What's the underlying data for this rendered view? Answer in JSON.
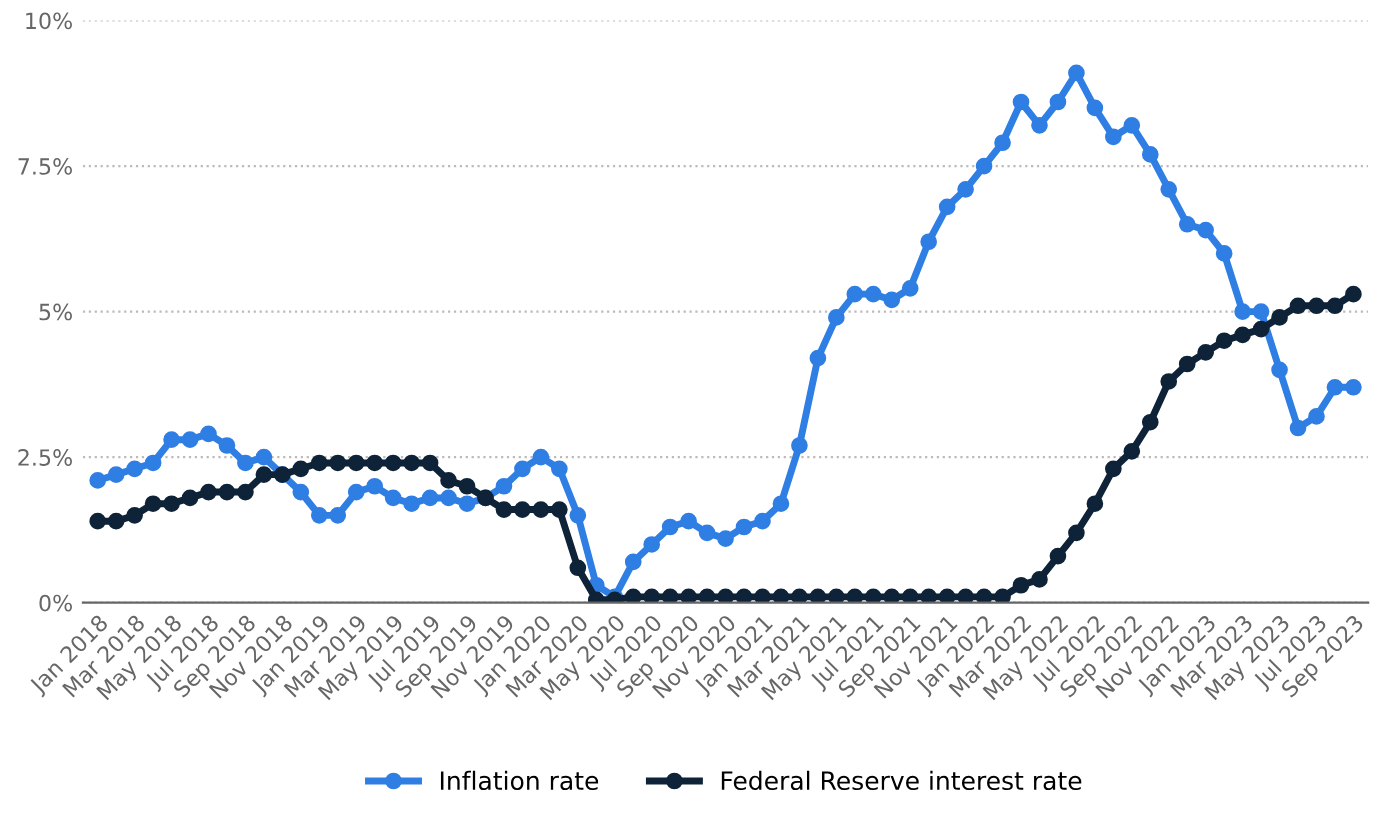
{
  "chart_data": {
    "type": "line",
    "categories": [
      "Jan 2018",
      null,
      "Mar 2018",
      null,
      "May 2018",
      null,
      "Jul 2018",
      null,
      "Sep 2018",
      null,
      "Nov 2018",
      null,
      "Jan 2019",
      null,
      "Mar 2019",
      null,
      "May 2019",
      null,
      "Jul 2019",
      null,
      "Sep 2019",
      null,
      "Nov 2019",
      null,
      "Jan 2020",
      null,
      "Mar 2020",
      null,
      "May 2020",
      null,
      "Jul 2020",
      null,
      "Sep 2020",
      null,
      "Nov 2020",
      null,
      "Jan 2021",
      null,
      "Mar 2021",
      null,
      "May 2021",
      null,
      "Jul 2021",
      null,
      "Sep 2021",
      null,
      "Nov 2021",
      null,
      "Jan 2022",
      null,
      "Mar 2022",
      null,
      "May 2022",
      null,
      "Jul 2022",
      null,
      "Sep 2022",
      null,
      "Nov 2022",
      null,
      "Jan 2023",
      null,
      "Mar 2023",
      null,
      "May 2023",
      null,
      "Jul 2023",
      null,
      "Sep 2023"
    ],
    "series": [
      {
        "name": "Inflation rate",
        "color": "#2f7ee3",
        "values": [
          2.1,
          2.2,
          2.3,
          2.4,
          2.8,
          2.8,
          2.9,
          2.7,
          2.4,
          2.5,
          2.2,
          1.9,
          1.5,
          1.5,
          1.9,
          2.0,
          1.8,
          1.7,
          1.8,
          1.8,
          1.7,
          1.8,
          2.0,
          2.3,
          2.5,
          2.3,
          1.5,
          0.3,
          0.1,
          0.7,
          1.0,
          1.3,
          1.4,
          1.2,
          1.1,
          1.3,
          1.4,
          1.7,
          2.7,
          4.2,
          4.9,
          5.3,
          5.3,
          5.2,
          5.4,
          6.2,
          6.8,
          7.1,
          7.5,
          7.9,
          8.6,
          8.2,
          8.6,
          9.1,
          8.5,
          8.0,
          8.2,
          7.7,
          7.1,
          6.5,
          6.4,
          6.0,
          5.0,
          5.0,
          4.0,
          3.0,
          3.2,
          3.7,
          3.7
        ]
      },
      {
        "name": "Federal Reserve interest rate",
        "color": "#0e2338",
        "values": [
          1.4,
          1.4,
          1.5,
          1.7,
          1.7,
          1.8,
          1.9,
          1.9,
          1.9,
          2.2,
          2.2,
          2.3,
          2.4,
          2.4,
          2.4,
          2.4,
          2.4,
          2.4,
          2.4,
          2.1,
          2.0,
          1.8,
          1.6,
          1.6,
          1.6,
          1.6,
          0.6,
          0.05,
          0.05,
          0.1,
          0.1,
          0.1,
          0.1,
          0.1,
          0.1,
          0.1,
          0.1,
          0.1,
          0.1,
          0.1,
          0.1,
          0.1,
          0.1,
          0.1,
          0.1,
          0.1,
          0.1,
          0.1,
          0.1,
          0.1,
          0.3,
          0.4,
          0.8,
          1.2,
          1.7,
          2.3,
          2.6,
          3.1,
          3.8,
          4.1,
          4.3,
          4.5,
          4.6,
          4.7,
          4.9,
          5.1,
          5.1,
          5.1,
          5.3
        ]
      }
    ],
    "ylim": [
      0,
      10
    ],
    "yticks": [
      {
        "value": 0,
        "label": "0%"
      },
      {
        "value": 2.5,
        "label": "2.5%"
      },
      {
        "value": 5,
        "label": "5%"
      },
      {
        "value": 7.5,
        "label": "7.5%"
      },
      {
        "value": 10,
        "label": "10%"
      }
    ],
    "grid": "y",
    "legend": "bottom",
    "marker": "circle",
    "line_style": "solid"
  }
}
